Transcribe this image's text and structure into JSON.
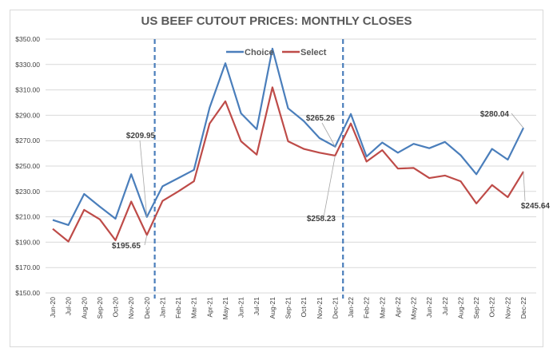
{
  "chart_data": {
    "type": "line",
    "title": "US BEEF CUTOUT PRICES: MONTHLY CLOSES",
    "xlabel": "",
    "ylabel": "",
    "ylim": [
      150,
      350
    ],
    "y_ticks": [
      150,
      170,
      190,
      210,
      230,
      250,
      270,
      290,
      310,
      330,
      350
    ],
    "y_tick_labels": [
      "$150.00",
      "$170.00",
      "$190.00",
      "$210.00",
      "$230.00",
      "$250.00",
      "$270.00",
      "$290.00",
      "$310.00",
      "$330.00",
      "$350.00"
    ],
    "grid": true,
    "legend_position": "top-center",
    "categories": [
      "Jun-20",
      "Jul-20",
      "Aug-20",
      "Sep-20",
      "Oct-20",
      "Nov-20",
      "Dec-20",
      "Jan-21",
      "Feb-21",
      "Mar-21",
      "Apr-21",
      "May-21",
      "Jun-21",
      "Jul-21",
      "Aug-21",
      "Sep-21",
      "Oct-21",
      "Nov-21",
      "Dec-21",
      "Jan-22",
      "Feb-22",
      "Mar-22",
      "Apr-22",
      "May-22",
      "Jun-22",
      "Jul-22",
      "Aug-22",
      "Sep-22",
      "Oct-22",
      "Nov-22",
      "Dec-22"
    ],
    "series": [
      {
        "name": "Choice",
        "color": "#4a7ebb",
        "values": [
          207.5,
          203.5,
          228,
          218,
          208.5,
          243.5,
          209.95,
          234,
          240.5,
          247,
          296,
          331,
          291.5,
          279,
          342.5,
          295.5,
          285.5,
          272,
          265.26,
          291,
          257.5,
          268.5,
          260.5,
          267.5,
          264,
          269,
          258.5,
          243.5,
          263.5,
          255,
          280.04
        ]
      },
      {
        "name": "Select",
        "color": "#be4b48",
        "values": [
          200.5,
          190.5,
          215.5,
          208,
          191.5,
          222,
          195.65,
          222.5,
          230,
          238,
          283.5,
          301,
          269.5,
          259,
          312,
          269.5,
          263.5,
          260.5,
          258.23,
          283.5,
          253.5,
          262.5,
          248,
          248.5,
          240.5,
          242.5,
          238,
          220.5,
          235,
          225.5,
          245.64
        ]
      }
    ],
    "vertical_markers": [
      {
        "between": [
          "Dec-20",
          "Jan-21"
        ],
        "style": "dashed",
        "color": "#4a7ebb"
      },
      {
        "between": [
          "Dec-21",
          "Jan-22"
        ],
        "style": "dashed",
        "color": "#4a7ebb"
      }
    ],
    "annotations": [
      {
        "series": "Choice",
        "category": "Dec-20",
        "text": "$209.95"
      },
      {
        "series": "Select",
        "category": "Dec-20",
        "text": "$195.65"
      },
      {
        "series": "Choice",
        "category": "Dec-21",
        "text": "$265.26"
      },
      {
        "series": "Select",
        "category": "Dec-21",
        "text": "$258.23"
      },
      {
        "series": "Choice",
        "category": "Dec-22",
        "text": "$280.04"
      },
      {
        "series": "Select",
        "category": "Dec-22",
        "text": "$245.64"
      }
    ]
  }
}
